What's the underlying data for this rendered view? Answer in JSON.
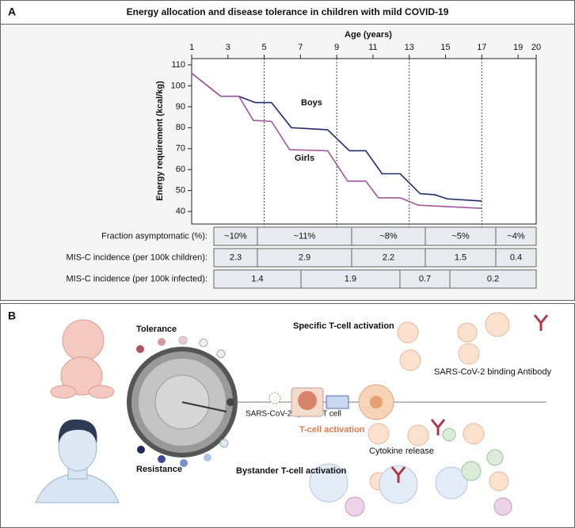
{
  "panel_a": {
    "label": "A",
    "title": "Energy allocation and disease tolerance in children with mild COVID-19"
  },
  "chart_data": {
    "type": "line",
    "x_label": "Age (years)",
    "y_label": "Energy requirement (kcal/kg)",
    "xlim": [
      1,
      20
    ],
    "xticks": [
      1,
      3,
      5,
      7,
      9,
      11,
      13,
      15,
      17,
      19,
      20
    ],
    "ylim": [
      34,
      113
    ],
    "yticks": [
      40,
      50,
      60,
      70,
      80,
      90,
      100,
      110
    ],
    "vlines": [
      5,
      9,
      13,
      17
    ],
    "series": [
      {
        "name": "Boys",
        "color": "#1f2a6b",
        "x": [
          1,
          2.6,
          3.6,
          4.5,
          5.4,
          6.5,
          8.5,
          9.7,
          10.6,
          11.5,
          12.5,
          13.6,
          14.4,
          15.1,
          17
        ],
        "values": [
          106,
          95,
          95,
          92,
          92,
          80,
          79,
          69,
          69,
          58,
          58,
          48.5,
          48,
          46,
          45
        ]
      },
      {
        "name": "Girls",
        "color": "#a0589a",
        "x": [
          1,
          2.6,
          3.6,
          4.4,
          5.4,
          6.4,
          8.5,
          9.6,
          10.6,
          11.3,
          12.5,
          13.5,
          17
        ],
        "values": [
          106,
          95,
          95,
          83.5,
          83,
          69.5,
          69,
          54.5,
          54.5,
          46.5,
          46.5,
          43,
          41.5
        ]
      }
    ]
  },
  "table": {
    "rows": [
      {
        "label": "Fraction asymptomatic (%):",
        "cells": [
          "~10%",
          "~11%",
          "~8%",
          "~5%",
          "~4%"
        ]
      },
      {
        "label": "MIS-C incidence (per 100k children):",
        "cells": [
          "2.3",
          "2.9",
          "2.2",
          "1.5",
          "0.4"
        ]
      },
      {
        "label": "MIS-C incidence (per 100k infected):",
        "cells": [
          "1.4",
          "1.9",
          "0.7",
          "0.2"
        ]
      }
    ]
  },
  "panel_b": {
    "label": "B",
    "tolerance": "Tolerance",
    "resistance": "Resistance",
    "specific_t_cell": "SARS-CoV-2 specific T cell",
    "t_cell_activation": "T-cell activation",
    "specific_activation": "Specific T-cell activation",
    "antibody": "SARS-CoV-2 binding Antibody",
    "cytokine": "Cytokine release",
    "bystander": "Bystander T-cell activation"
  }
}
